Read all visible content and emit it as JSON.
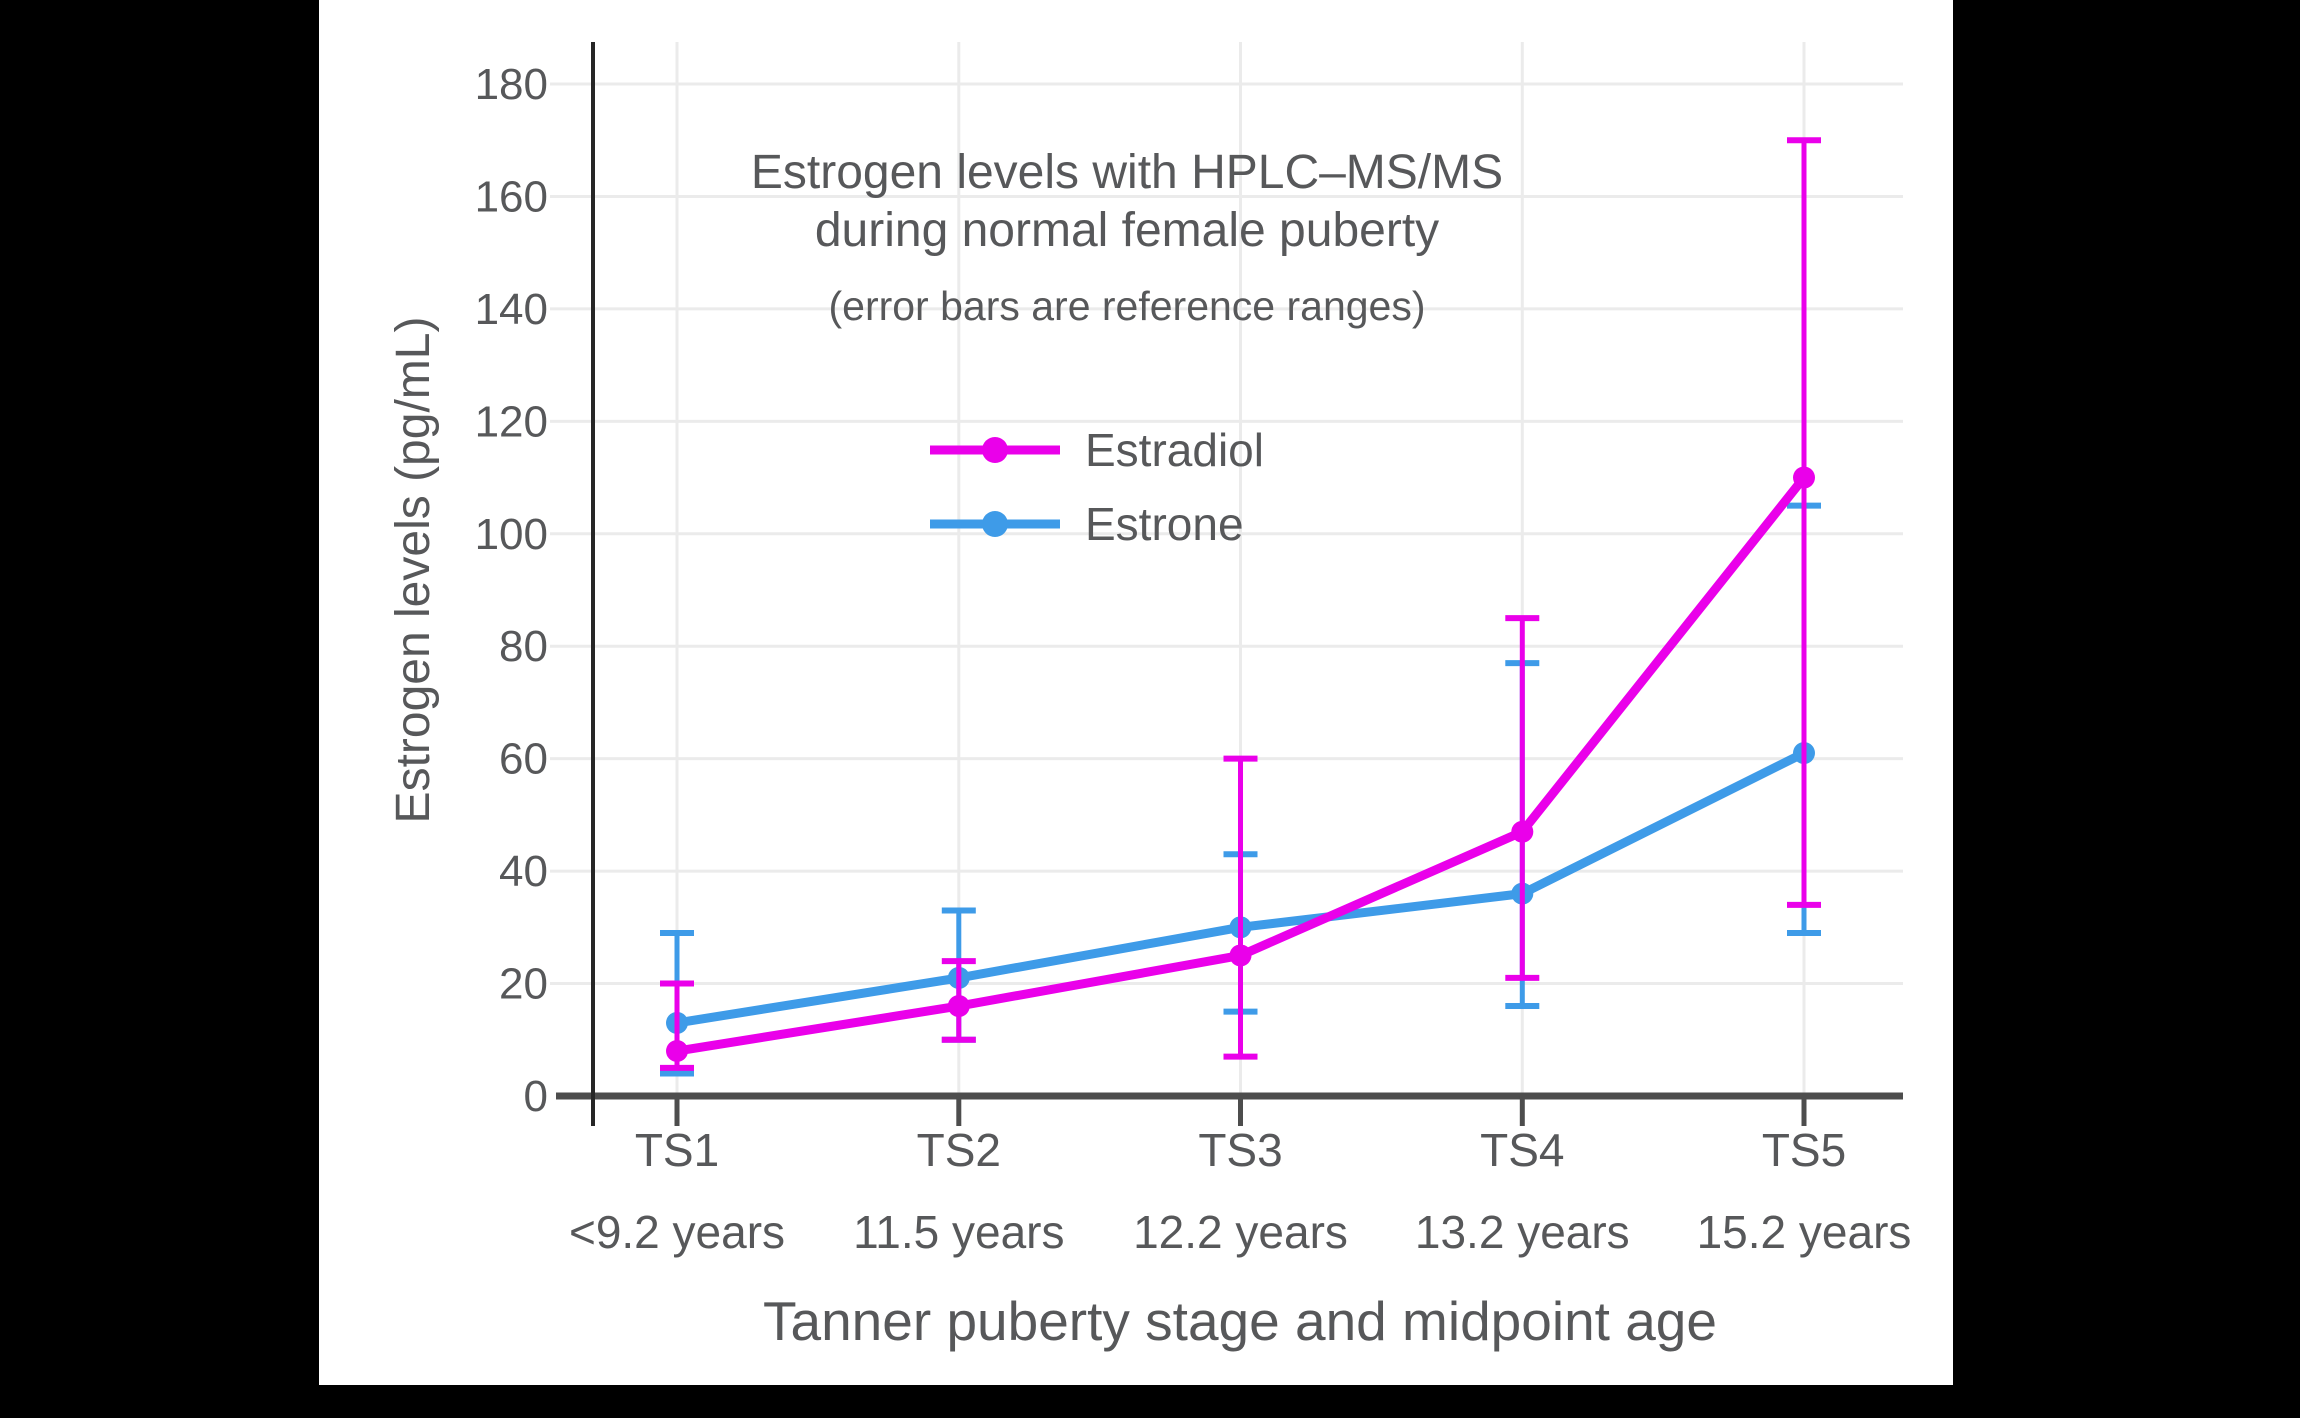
{
  "chart_data": {
    "type": "line",
    "title_lines": [
      "Estrogen levels with HPLC–MS/MS",
      "during normal female puberty"
    ],
    "subtitle": "(error bars are reference ranges)",
    "xlabel": "Tanner puberty stage and midpoint age",
    "ylabel": "Estrogen levels (pg/mL)",
    "categories": [
      "TS1",
      "TS2",
      "TS3",
      "TS4",
      "TS5"
    ],
    "category_ages": [
      "<9.2 years",
      "11.5 years",
      "12.2 years",
      "13.2 years",
      "15.2 years"
    ],
    "y_ticks": [
      0,
      20,
      40,
      60,
      80,
      100,
      120,
      140,
      160,
      180
    ],
    "ylim": [
      0,
      187
    ],
    "grid": true,
    "legend_position": "upper-center-inside",
    "series": [
      {
        "name": "Estradiol",
        "color": "#EA00EA",
        "values": [
          8,
          16,
          25,
          47,
          110
        ],
        "error_low": [
          5,
          10,
          7,
          21,
          34
        ],
        "error_high": [
          20,
          24,
          60,
          85,
          170
        ]
      },
      {
        "name": "Estrone",
        "color": "#3E9BE8",
        "values": [
          13,
          21,
          30,
          36,
          61
        ],
        "error_low": [
          4,
          10,
          15,
          16,
          29
        ],
        "error_high": [
          29,
          33,
          43,
          77,
          105
        ]
      }
    ]
  },
  "colors": {
    "page_background": "#000000",
    "plot_background": "#ffffff",
    "text": "#57585A",
    "gridline": "#EBEBEB",
    "axis_line": "#4D4D4D",
    "y_spine": "#262626",
    "estradiol": "#EA00EA",
    "estrone": "#3E9BE8"
  }
}
